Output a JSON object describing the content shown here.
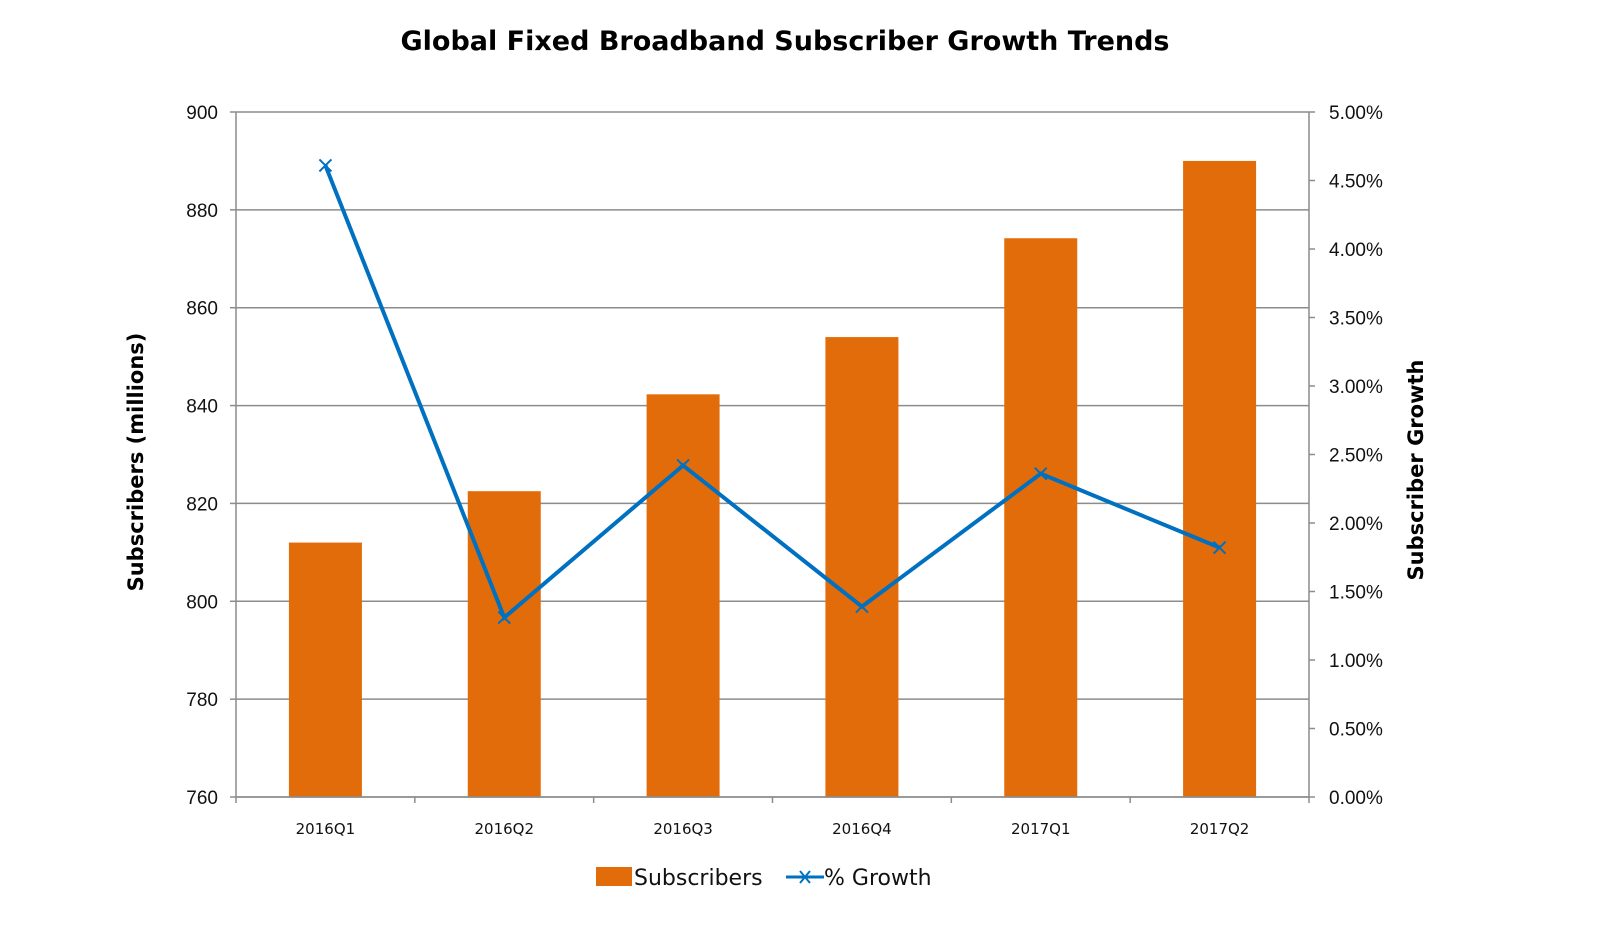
{
  "chart_data": {
    "type": "bar",
    "title": "Global Fixed Broadband Subscriber Growth Trends",
    "categories": [
      "2016Q1",
      "2016Q2",
      "2016Q3",
      "2016Q4",
      "2017Q1",
      "2017Q2"
    ],
    "series": [
      {
        "name": "Subscribers",
        "type": "bar",
        "axis": "left",
        "color": "#E36C0A",
        "values": [
          812,
          822.5,
          842.3,
          854,
          874.2,
          890
        ]
      },
      {
        "name": "% Growth",
        "type": "line",
        "axis": "right",
        "marker": "x",
        "color": "#0070C0",
        "values": [
          4.61,
          1.31,
          2.42,
          1.39,
          2.36,
          1.82
        ]
      }
    ],
    "ylabel": "Subscribers (millions)",
    "ylabel_right": "Subscriber Growth",
    "xlabel": "",
    "ylim": [
      760,
      900
    ],
    "ylim_right": [
      0,
      5
    ],
    "yticks": [
      760,
      780,
      800,
      820,
      840,
      860,
      880,
      900
    ],
    "yticks_right": [
      "0.00%",
      "0.50%",
      "1.00%",
      "1.50%",
      "2.00%",
      "2.50%",
      "3.00%",
      "3.50%",
      "4.00%",
      "4.50%",
      "5.00%"
    ],
    "yticks_right_values": [
      0,
      0.5,
      1,
      1.5,
      2,
      2.5,
      3,
      3.5,
      4,
      4.5,
      5
    ],
    "grid": true,
    "legend": {
      "position": "bottom",
      "entries": [
        "Subscribers",
        "% Growth"
      ]
    }
  }
}
